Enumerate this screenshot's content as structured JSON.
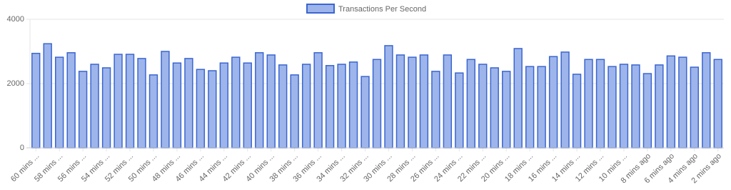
{
  "chart_data": {
    "type": "bar",
    "series": [
      {
        "name": "Transactions Per Second",
        "color": "#9db5eb",
        "border_color": "#3c66cf",
        "values": [
          2940,
          3240,
          2820,
          2960,
          2380,
          2600,
          2490,
          2910,
          2910,
          2780,
          2270,
          3000,
          2640,
          2780,
          2440,
          2400,
          2640,
          2820,
          2640,
          2960,
          2890,
          2580,
          2270,
          2600,
          2960,
          2560,
          2600,
          2670,
          2220,
          2750,
          3180,
          2890,
          2820,
          2890,
          2380,
          2890,
          2330,
          2750,
          2600,
          2490,
          2380,
          3090,
          2530,
          2530,
          2840,
          2980,
          2290,
          2750,
          2750,
          2530,
          2600,
          2580,
          2310,
          2580,
          2860,
          2820,
          2510,
          2960,
          2750
        ]
      }
    ],
    "categories": [
      "60 mins ...",
      null,
      "58 mins ...",
      null,
      "56 mins ...",
      null,
      "54 mins ...",
      null,
      "52 mins ...",
      null,
      "50 mins ...",
      null,
      "48 mins ...",
      null,
      "46 mins ...",
      null,
      "44 mins ...",
      null,
      "42 mins ...",
      null,
      "40 mins ...",
      null,
      "38 mins ...",
      null,
      "36 mins ...",
      null,
      "34 mins ...",
      null,
      "32 mins ...",
      null,
      "30 mins ...",
      null,
      "28 mins ...",
      null,
      "26 mins ...",
      null,
      "24 mins ...",
      null,
      "22 mins ...",
      null,
      "20 mins ...",
      null,
      "18 mins ...",
      null,
      "16 mins ...",
      null,
      "14 mins ...",
      null,
      "12 mins ...",
      null,
      "10 mins ...",
      null,
      "8 mins ago",
      null,
      "6 mins ago",
      null,
      "4 mins ago",
      null,
      "2 mins ago"
    ],
    "ylim": [
      0,
      4000
    ],
    "yticks": [
      0,
      2000,
      4000
    ],
    "grid": true,
    "legend": "top"
  }
}
